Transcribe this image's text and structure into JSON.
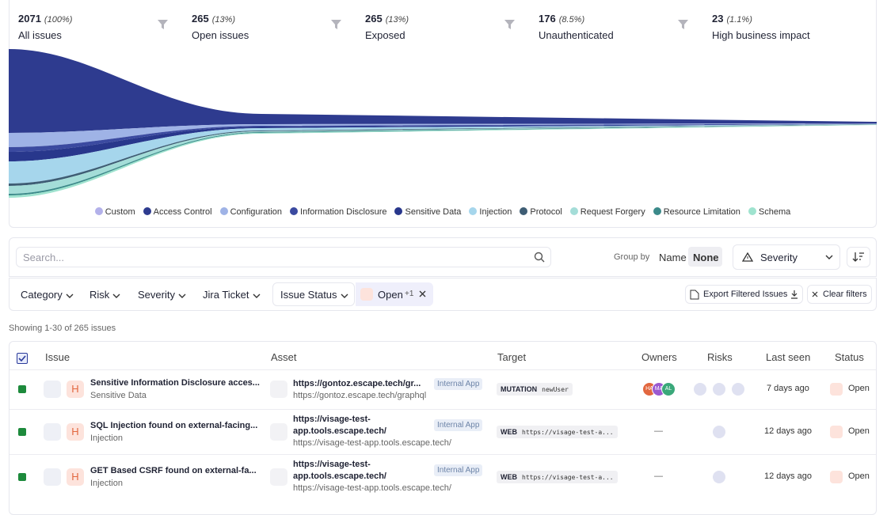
{
  "funnel": [
    {
      "count": 2071,
      "percent": "(100%)",
      "label": "All issues"
    },
    {
      "count": 265,
      "percent": "(13%)",
      "label": "Open issues"
    },
    {
      "count": 265,
      "percent": "(13%)",
      "label": "Exposed"
    },
    {
      "count": 176,
      "percent": "(8.5%)",
      "label": "Unauthenticated"
    },
    {
      "count": 23,
      "percent": "(1.1%)",
      "label": "High business impact"
    }
  ],
  "legend": [
    {
      "label": "Custom",
      "color": "#b3b1ea"
    },
    {
      "label": "Access Control",
      "color": "#2e3b8f"
    },
    {
      "label": "Configuration",
      "color": "#9fb3e6"
    },
    {
      "label": "Information Disclosure",
      "color": "#3b4aa0"
    },
    {
      "label": "Sensitive Data",
      "color": "#28378c"
    },
    {
      "label": "Injection",
      "color": "#a6d6ec"
    },
    {
      "label": "Protocol",
      "color": "#3e5d74"
    },
    {
      "label": "Request Forgery",
      "color": "#a4ddd8"
    },
    {
      "label": "Resource Limitation",
      "color": "#3b8a8a"
    },
    {
      "label": "Schema",
      "color": "#9fe3cf"
    }
  ],
  "toolbar": {
    "search_placeholder": "Search...",
    "group_by": "Group by",
    "group_options": [
      "Name",
      "None"
    ],
    "sort_field": "Severity"
  },
  "filters": {
    "items": [
      "Category",
      "Risk",
      "Severity",
      "Jira Ticket",
      "Issue Status"
    ],
    "active": {
      "label": "Open",
      "extra": "+1"
    },
    "export": "Export Filtered Issues",
    "clear": "Clear filters"
  },
  "summary": "Showing 1-30 of 265 issues",
  "table": {
    "headers": [
      "Issue",
      "Asset",
      "Target",
      "Owners",
      "Risks",
      "Last seen",
      "Status"
    ],
    "rows": [
      {
        "severity": "H",
        "title": "Sensitive Information Disclosure acces...",
        "category": "Sensitive Data",
        "asset": "https://gontoz.escape.tech/gr...",
        "asset_tag": "Internal App",
        "asset_url": "https://gontoz.escape.tech/graphql",
        "target_type": "MUTATION",
        "target": "newUser",
        "owners": [
          "HA",
          "MA",
          "AL"
        ],
        "last_seen": "7 days ago",
        "status": "Open"
      },
      {
        "severity": "H",
        "title": "SQL Injection found on external-facing...",
        "category": "Injection",
        "asset": "https://visage-test-app.tools.escape.tech/",
        "asset_tag": "Internal App",
        "asset_url": "https://visage-test-app.tools.escape.tech/",
        "target_type": "WEB",
        "target": "https://visage-test-a...",
        "owners": "—",
        "last_seen": "12 days ago",
        "status": "Open"
      },
      {
        "severity": "H",
        "title": "GET Based CSRF found on external-fa...",
        "category": "Injection",
        "asset": "https://visage-test-app.tools.escape.tech/",
        "asset_tag": "Internal App",
        "asset_url": "https://visage-test-app.tools.escape.tech/",
        "target_type": "WEB",
        "target": "https://visage-test-a...",
        "owners": "—",
        "last_seen": "12 days ago",
        "status": "Open"
      }
    ]
  }
}
